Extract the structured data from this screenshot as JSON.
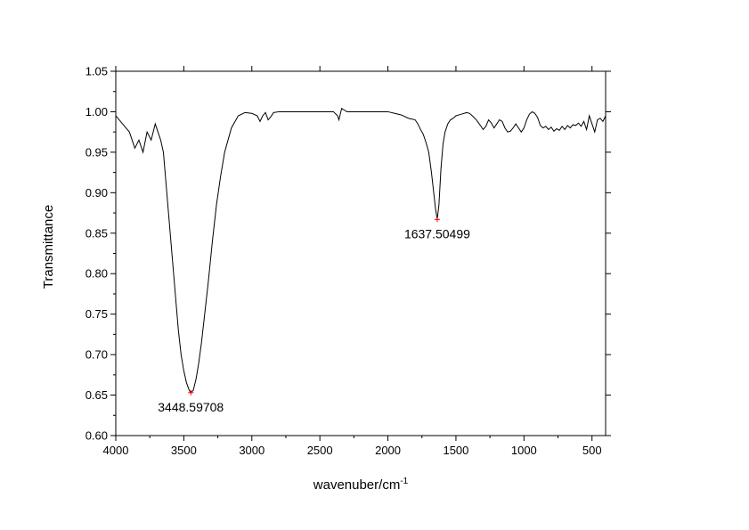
{
  "chart_data": {
    "type": "line",
    "title": "",
    "xlabel": "wavenuber/cm",
    "xlabel_superscript": "-1",
    "ylabel": "Transmittance",
    "xlim": [
      4000,
      400
    ],
    "ylim": [
      0.6,
      1.05
    ],
    "x_reversed": true,
    "grid": false,
    "legend": "none",
    "x_ticks": [
      "4000",
      "3500",
      "3000",
      "2500",
      "2000",
      "1500",
      "1000",
      "500"
    ],
    "y_ticks": [
      "0.60",
      "0.65",
      "0.70",
      "0.75",
      "0.80",
      "0.85",
      "0.90",
      "0.95",
      "1.00",
      "1.05"
    ],
    "line_color": "#000000",
    "marker_color": "#ff0000",
    "series": [
      {
        "x": [
          4000,
          3950,
          3900,
          3860,
          3830,
          3800,
          3770,
          3740,
          3710,
          3690,
          3670,
          3650,
          3630,
          3610,
          3600,
          3580,
          3560,
          3540,
          3520,
          3500,
          3480,
          3460,
          3448.6,
          3430,
          3410,
          3390,
          3370,
          3350,
          3320,
          3290,
          3260,
          3230,
          3200,
          3150,
          3100,
          3050,
          3000,
          2960,
          2940,
          2920,
          2900,
          2880,
          2860,
          2840,
          2800,
          2700,
          2600,
          2500,
          2400,
          2370,
          2360,
          2340,
          2320,
          2300,
          2200,
          2100,
          2000,
          1950,
          1900,
          1850,
          1800,
          1780,
          1760,
          1740,
          1720,
          1700,
          1680,
          1660,
          1650,
          1637.5,
          1625,
          1610,
          1595,
          1580,
          1560,
          1540,
          1520,
          1500,
          1480,
          1460,
          1440,
          1420,
          1400,
          1380,
          1350,
          1320,
          1300,
          1280,
          1260,
          1240,
          1220,
          1200,
          1180,
          1160,
          1140,
          1120,
          1100,
          1080,
          1060,
          1040,
          1020,
          1000,
          980,
          960,
          940,
          920,
          900,
          880,
          860,
          840,
          820,
          800,
          780,
          760,
          740,
          720,
          700,
          680,
          660,
          640,
          620,
          600,
          580,
          560,
          540,
          520,
          500,
          480,
          460,
          440,
          420,
          400
        ],
        "y": [
          0.995,
          0.985,
          0.975,
          0.955,
          0.965,
          0.95,
          0.975,
          0.965,
          0.985,
          0.975,
          0.965,
          0.95,
          0.91,
          0.87,
          0.85,
          0.81,
          0.77,
          0.73,
          0.7,
          0.68,
          0.665,
          0.656,
          0.653,
          0.656,
          0.67,
          0.69,
          0.715,
          0.745,
          0.79,
          0.84,
          0.885,
          0.92,
          0.95,
          0.98,
          0.995,
          0.999,
          0.998,
          0.995,
          0.988,
          0.995,
          0.999,
          0.99,
          0.994,
          0.999,
          1.0,
          1.0,
          1.0,
          1.0,
          1.0,
          0.995,
          0.99,
          1.004,
          1.002,
          1.0,
          1.0,
          1.0,
          1.0,
          0.998,
          0.996,
          0.992,
          0.99,
          0.985,
          0.978,
          0.972,
          0.962,
          0.95,
          0.925,
          0.895,
          0.88,
          0.867,
          0.885,
          0.93,
          0.96,
          0.975,
          0.985,
          0.99,
          0.992,
          0.995,
          0.996,
          0.997,
          0.998,
          0.999,
          0.998,
          0.995,
          0.99,
          0.983,
          0.978,
          0.982,
          0.99,
          0.986,
          0.98,
          0.985,
          0.99,
          0.988,
          0.98,
          0.975,
          0.976,
          0.98,
          0.985,
          0.98,
          0.975,
          0.98,
          0.99,
          0.997,
          1.0,
          0.998,
          0.993,
          0.983,
          0.98,
          0.982,
          0.978,
          0.981,
          0.976,
          0.979,
          0.977,
          0.982,
          0.978,
          0.983,
          0.98,
          0.984,
          0.983,
          0.986,
          0.982,
          0.988,
          0.978,
          0.995,
          0.985,
          0.975,
          0.99,
          0.992,
          0.988,
          0.995
        ]
      }
    ],
    "annotations": [
      {
        "x": 3448.59708,
        "y": 0.653,
        "label": "3448.59708"
      },
      {
        "x": 1637.50499,
        "y": 0.867,
        "label": "1637.50499"
      }
    ]
  }
}
